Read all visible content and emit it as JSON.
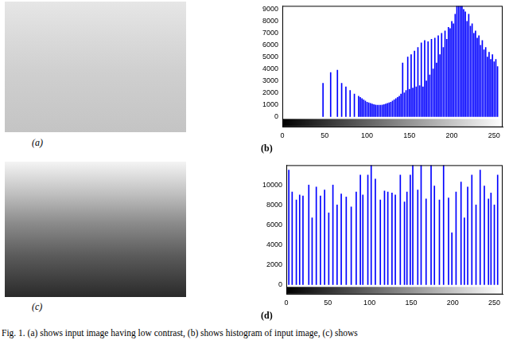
{
  "images": [
    {
      "label": "(a)"
    },
    {
      "label": "(c)"
    }
  ],
  "chart_data": [
    {
      "type": "bar",
      "title": "(b)",
      "color": "#0000ff",
      "grid": false,
      "x": [
        48,
        57,
        65,
        70,
        75,
        80,
        85,
        90,
        92,
        94,
        96,
        98,
        100,
        102,
        104,
        106,
        108,
        110,
        112,
        114,
        116,
        118,
        120,
        122,
        124,
        126,
        128,
        130,
        132,
        134,
        136,
        138,
        140,
        142,
        144,
        146,
        148,
        150,
        152,
        154,
        156,
        158,
        160,
        162,
        164,
        166,
        168,
        170,
        172,
        174,
        176,
        178,
        180,
        182,
        184,
        186,
        188,
        190,
        192,
        194,
        196,
        198,
        200,
        202,
        204,
        206,
        208,
        210,
        212,
        214,
        216,
        218,
        220,
        222,
        224,
        226,
        228,
        230,
        232,
        234,
        236,
        238,
        240,
        242,
        244,
        246,
        248,
        250,
        252,
        254
      ],
      "values": [
        2800,
        3700,
        3900,
        2800,
        2500,
        2200,
        1900,
        1700,
        1600,
        1500,
        1400,
        1300,
        1200,
        1150,
        1100,
        1050,
        1000,
        980,
        950,
        950,
        960,
        980,
        1000,
        1050,
        1100,
        1150,
        1200,
        1300,
        1400,
        1500,
        1600,
        1700,
        1900,
        4500,
        2000,
        2200,
        5000,
        2300,
        5200,
        2400,
        5500,
        2500,
        5800,
        2600,
        6200,
        2500,
        6400,
        3000,
        6300,
        3500,
        6500,
        4000,
        6600,
        4500,
        6800,
        5200,
        7000,
        5800,
        7200,
        6500,
        7500,
        7400,
        8000,
        7800,
        8600,
        9300,
        9300,
        9300,
        9300,
        9000,
        8800,
        8000,
        8600,
        7600,
        7800,
        7000,
        7200,
        6600,
        6800,
        6000,
        6400,
        5600,
        5800,
        5000,
        5400,
        4800,
        5200,
        4600,
        4800,
        4200
      ],
      "xlim": [
        0,
        260
      ],
      "xticks": [
        0,
        50,
        100,
        150,
        200,
        250
      ],
      "ylim": [
        -900,
        9300
      ],
      "yticks": [
        0,
        1000,
        2000,
        3000,
        4000,
        5000,
        6000,
        7000,
        8000,
        9000
      ]
    },
    {
      "type": "bar",
      "title": "(d)",
      "color": "#0000ff",
      "grid": false,
      "x": [
        3,
        7,
        12,
        16,
        20,
        27,
        31,
        36,
        41,
        46,
        51,
        56,
        61,
        66,
        72,
        78,
        84,
        89,
        92,
        98,
        102,
        107,
        113,
        118,
        122,
        127,
        131,
        137,
        142,
        145,
        149,
        152,
        158,
        162,
        168,
        174,
        178,
        184,
        189,
        195,
        199,
        204,
        210,
        214,
        218,
        223,
        228,
        233,
        238,
        243,
        246,
        250,
        254
      ],
      "values": [
        11500,
        9300,
        8500,
        9000,
        8900,
        10000,
        6700,
        9800,
        8900,
        9500,
        7200,
        10000,
        8000,
        9100,
        8800,
        7800,
        9300,
        11000,
        9000,
        11000,
        12000,
        10600,
        8500,
        9400,
        9300,
        9200,
        9000,
        11000,
        8300,
        9300,
        11000,
        12000,
        9500,
        12000,
        8600,
        12000,
        9900,
        8500,
        12000,
        8700,
        5200,
        9300,
        10300,
        6700,
        9800,
        11000,
        8000,
        11500,
        9900,
        8600,
        9200,
        8000,
        11000
      ],
      "xlim": [
        0,
        260
      ],
      "xticks": [
        0,
        50,
        100,
        150,
        200,
        250
      ],
      "ylim": [
        -1000,
        12000
      ],
      "yticks": [
        0,
        2000,
        4000,
        6000,
        8000,
        10000
      ]
    }
  ],
  "caption": "Fig. 1. (a) shows input image having low contrast, (b) shows histogram of input image, (c) shows"
}
